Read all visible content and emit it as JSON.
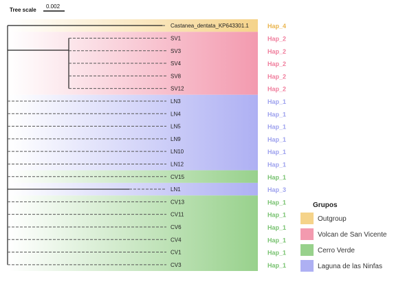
{
  "scale": {
    "title": "Tree scale",
    "value": "0.002"
  },
  "groups": {
    "Outgroup": "#f5d38a",
    "Volcan de San Vicente": "#f39aaf",
    "Cerro Verde": "#98d18c",
    "Laguna de las Ninfas": "#aeb0f3"
  },
  "hap_colors": {
    "Outgroup": "#eab54e",
    "Volcan de San Vicente": "#f07e9d",
    "Cerro Verde": "#78c270",
    "Laguna de las Ninfas": "#9ea2ee"
  },
  "taxa": [
    {
      "label": "Castanea_dentata_KP643301.1",
      "hap": "Hap_4",
      "group": "Outgroup"
    },
    {
      "label": "SV1",
      "hap": "Hap_2",
      "group": "Volcan de San Vicente"
    },
    {
      "label": "SV3",
      "hap": "Hap_2",
      "group": "Volcan de San Vicente"
    },
    {
      "label": "SV4",
      "hap": "Hap_2",
      "group": "Volcan de San Vicente"
    },
    {
      "label": "SV8",
      "hap": "Hap_2",
      "group": "Volcan de San Vicente"
    },
    {
      "label": "SV12",
      "hap": "Hap_2",
      "group": "Volcan de San Vicente"
    },
    {
      "label": "LN3",
      "hap": "Hap_1",
      "group": "Laguna de las Ninfas"
    },
    {
      "label": "LN4",
      "hap": "Hap_1",
      "group": "Laguna de las Ninfas"
    },
    {
      "label": "LN5",
      "hap": "Hap_1",
      "group": "Laguna de las Ninfas"
    },
    {
      "label": "LN9",
      "hap": "Hap_1",
      "group": "Laguna de las Ninfas"
    },
    {
      "label": "LN10",
      "hap": "Hap_1",
      "group": "Laguna de las Ninfas"
    },
    {
      "label": "LN12",
      "hap": "Hap_1",
      "group": "Laguna de las Ninfas"
    },
    {
      "label": "CV15",
      "hap": "Hap_1",
      "group": "Cerro Verde"
    },
    {
      "label": "LN1",
      "hap": "Hap_3",
      "group": "Laguna de las Ninfas"
    },
    {
      "label": "CV13",
      "hap": "Hap_1",
      "group": "Cerro Verde"
    },
    {
      "label": "CV11",
      "hap": "Hap_1",
      "group": "Cerro Verde"
    },
    {
      "label": "CV6",
      "hap": "Hap_1",
      "group": "Cerro Verde"
    },
    {
      "label": "CV4",
      "hap": "Hap_1",
      "group": "Cerro Verde"
    },
    {
      "label": "CV1",
      "hap": "Hap_1",
      "group": "Cerro Verde"
    },
    {
      "label": "CV3",
      "hap": "Hap_1",
      "group": "Cerro Verde"
    }
  ],
  "legend": {
    "title": "Grupos",
    "items": [
      "Outgroup",
      "Volcan de San Vicente",
      "Cerro Verde",
      "Laguna de las Ninfas"
    ]
  }
}
